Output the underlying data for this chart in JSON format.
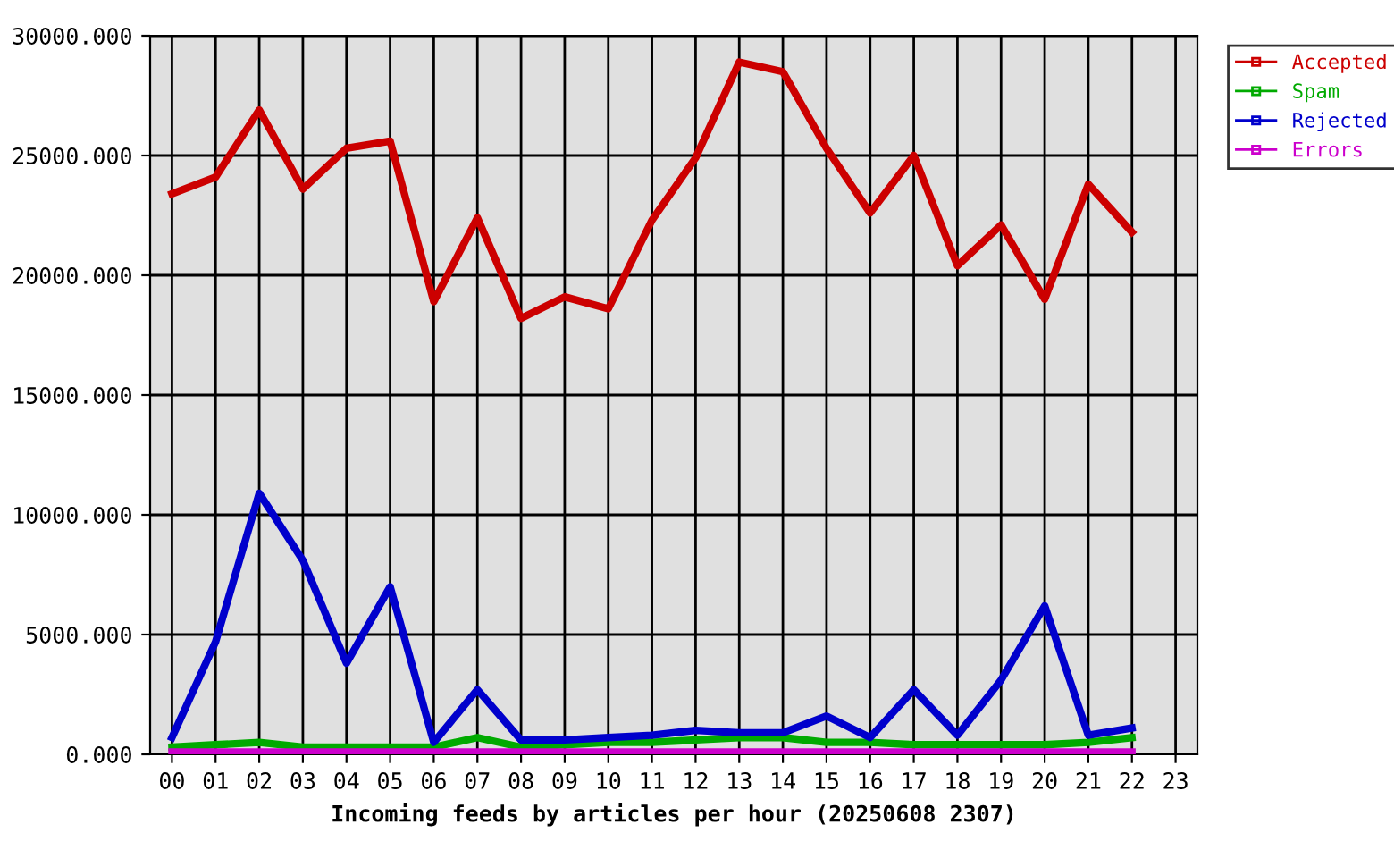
{
  "chart_data": {
    "type": "line",
    "xlabel": "Incoming feeds by articles per hour (20250608 2307)",
    "categories": [
      "00",
      "01",
      "02",
      "03",
      "04",
      "05",
      "06",
      "07",
      "08",
      "09",
      "10",
      "11",
      "12",
      "13",
      "14",
      "15",
      "16",
      "17",
      "18",
      "19",
      "20",
      "21",
      "22",
      "23"
    ],
    "series": [
      {
        "name": "Accepted",
        "color": "#cc0000",
        "values": [
          23400,
          24100,
          26900,
          23600,
          25300,
          25600,
          18900,
          22400,
          18200,
          19100,
          18600,
          22300,
          24900,
          28900,
          28500,
          25300,
          22600,
          25000,
          20400,
          22100,
          19000,
          23800,
          21800,
          null
        ]
      },
      {
        "name": "Spam",
        "color": "#00aa00",
        "values": [
          300,
          400,
          500,
          300,
          300,
          300,
          300,
          700,
          300,
          400,
          500,
          500,
          600,
          700,
          700,
          500,
          500,
          400,
          400,
          400,
          400,
          500,
          700,
          null
        ]
      },
      {
        "name": "Rejected",
        "color": "#0000cc",
        "values": [
          700,
          4700,
          10900,
          8100,
          3800,
          7000,
          500,
          2700,
          600,
          600,
          700,
          800,
          1000,
          900,
          900,
          1600,
          700,
          2700,
          800,
          3100,
          6200,
          800,
          1100,
          null
        ]
      },
      {
        "name": "Errors",
        "color": "#cc00cc",
        "values": [
          100,
          100,
          100,
          100,
          100,
          100,
          100,
          100,
          100,
          100,
          100,
          100,
          100,
          100,
          100,
          100,
          100,
          100,
          100,
          100,
          100,
          100,
          100,
          null
        ]
      }
    ],
    "ylim": [
      0,
      30000
    ],
    "yticks": [
      {
        "value": 0,
        "label": "0.000"
      },
      {
        "value": 5000,
        "label": "5000.000"
      },
      {
        "value": 10000,
        "label": "10000.000"
      },
      {
        "value": 15000,
        "label": "15000.000"
      },
      {
        "value": 20000,
        "label": "20000.000"
      },
      {
        "value": 25000,
        "label": "25000.000"
      },
      {
        "value": 30000,
        "label": "30000.000"
      }
    ],
    "grid": true,
    "legend": "top right",
    "marker": "none",
    "line_style": "solid"
  }
}
